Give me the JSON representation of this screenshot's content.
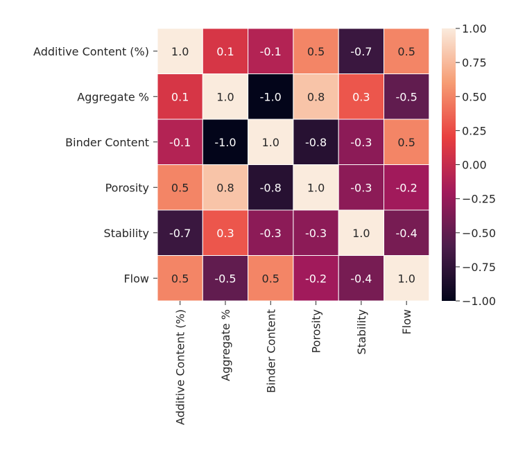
{
  "chart_data": {
    "type": "heatmap",
    "title": "",
    "row_labels": [
      "Additive Content (%)",
      "Aggregate %",
      "Binder Content",
      "Porosity",
      "Stability",
      "Flow"
    ],
    "col_labels": [
      "Additive Content (%)",
      "Aggregate %",
      "Binder Content",
      "Porosity",
      "Stability",
      "Flow"
    ],
    "values": [
      [
        1.0,
        0.1,
        -0.1,
        0.5,
        -0.7,
        0.5
      ],
      [
        0.1,
        1.0,
        -1.0,
        0.8,
        0.3,
        -0.5
      ],
      [
        -0.1,
        -1.0,
        1.0,
        -0.8,
        -0.3,
        0.5
      ],
      [
        0.5,
        0.8,
        -0.8,
        1.0,
        -0.3,
        -0.2
      ],
      [
        -0.7,
        0.3,
        -0.3,
        -0.3,
        1.0,
        -0.4
      ],
      [
        0.5,
        -0.5,
        0.5,
        -0.2,
        -0.4,
        1.0
      ]
    ],
    "value_labels": [
      [
        "1.0",
        "0.1",
        "-0.1",
        "0.5",
        "-0.7",
        "0.5"
      ],
      [
        "0.1",
        "1.0",
        "-1.0",
        "0.8",
        "0.3",
        "-0.5"
      ],
      [
        "-0.1",
        "-1.0",
        "1.0",
        "-0.8",
        "-0.3",
        "0.5"
      ],
      [
        "0.5",
        "0.8",
        "-0.8",
        "1.0",
        "-0.3",
        "-0.2"
      ],
      [
        "-0.7",
        "0.3",
        "-0.3",
        "-0.3",
        "1.0",
        "-0.4"
      ],
      [
        "0.5",
        "-0.5",
        "0.5",
        "-0.2",
        "-0.4",
        "1.0"
      ]
    ],
    "colorbar": {
      "range": [
        -1.0,
        1.0
      ],
      "ticks": [
        1.0,
        0.75,
        0.5,
        0.25,
        0.0,
        -0.25,
        -0.5,
        -0.75,
        -1.0
      ],
      "tick_labels": [
        "1.00",
        "0.75",
        "0.50",
        "0.25",
        "0.00",
        "−0.25",
        "−0.50",
        "−0.75",
        "−1.00"
      ],
      "colormap": "rocket",
      "colormap_stops": [
        "#03051a",
        "#4c1d4b",
        "#a11a5b",
        "#e83f3f",
        "#f69c73",
        "#faebdd"
      ]
    },
    "grid": true,
    "cell_border_color": "#ffffff"
  }
}
